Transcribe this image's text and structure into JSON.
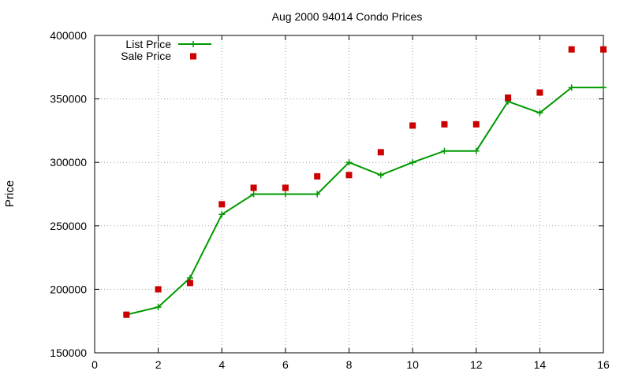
{
  "chart_data": {
    "type": "line",
    "title": "Aug 2000 94014 Condo Prices",
    "xlabel": "",
    "ylabel": "Price",
    "xlim": [
      0,
      16
    ],
    "ylim": [
      150000,
      400000
    ],
    "xticks": [
      0,
      2,
      4,
      6,
      8,
      10,
      12,
      14,
      16
    ],
    "yticks": [
      150000,
      200000,
      250000,
      300000,
      350000,
      400000
    ],
    "grid": true,
    "legend_position": "top-left",
    "series": [
      {
        "name": "List Price",
        "style": "lines+points",
        "marker": "plus",
        "color": "#009900",
        "x": [
          1,
          2,
          3,
          4,
          5,
          6,
          7,
          8,
          9,
          10,
          11,
          12,
          13,
          14,
          15,
          16
        ],
        "y": [
          180000,
          186000,
          209000,
          259000,
          275000,
          275000,
          275000,
          300000,
          290000,
          300000,
          309000,
          309000,
          348000,
          339000,
          359000,
          359000
        ]
      },
      {
        "name": "Sale Price",
        "style": "points",
        "marker": "square",
        "color": "#cc0000",
        "x": [
          1,
          2,
          3,
          4,
          5,
          6,
          7,
          8,
          9,
          10,
          11,
          12,
          13,
          14,
          15,
          16
        ],
        "y": [
          180000,
          200000,
          205000,
          267000,
          280000,
          280000,
          289000,
          290000,
          308000,
          329000,
          330000,
          330000,
          351000,
          355000,
          389000,
          389000
        ]
      }
    ]
  }
}
